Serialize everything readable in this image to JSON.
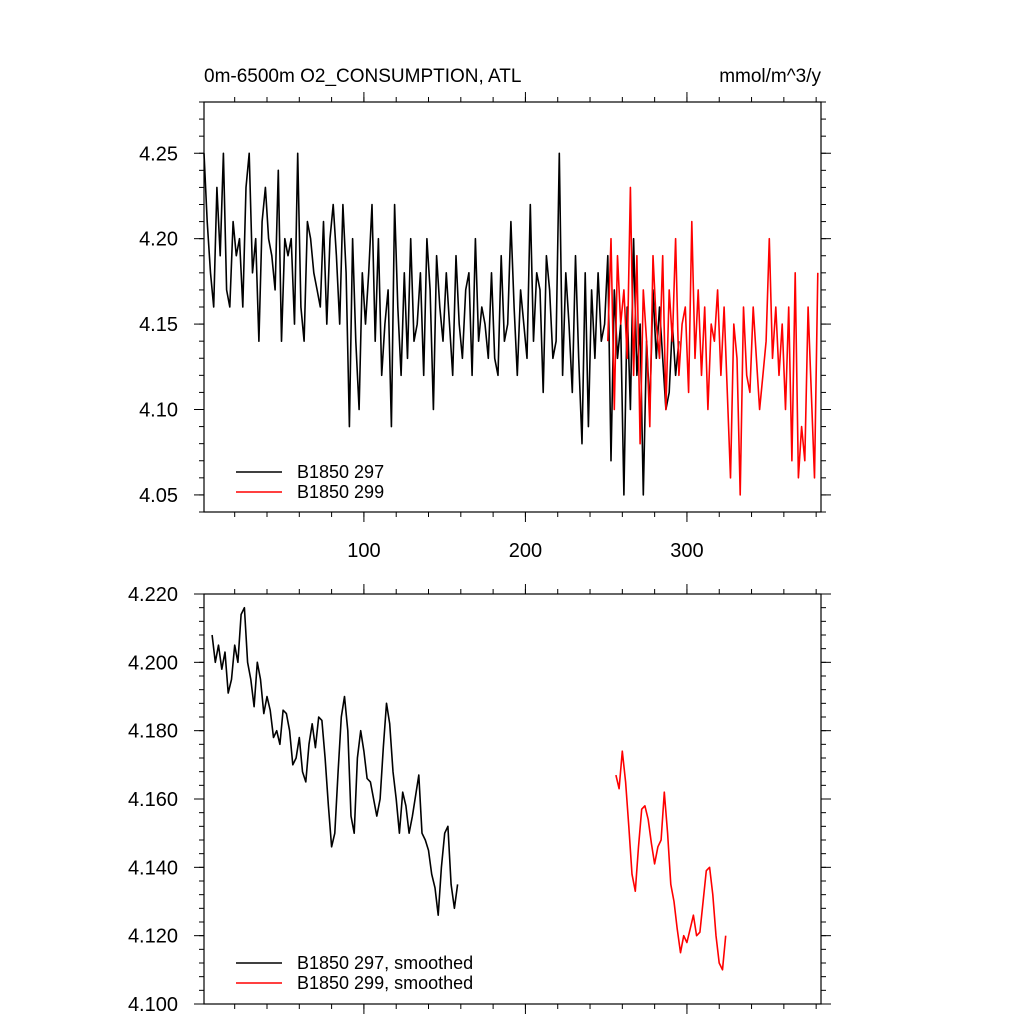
{
  "chart_data": [
    {
      "type": "line",
      "title": "0m-6500m O2_CONSUMPTION, ATL",
      "units": "mmol/m^3/y",
      "xlim": [
        1,
        383
      ],
      "ylim": [
        4.04,
        4.28
      ],
      "xticks": [
        100,
        200,
        300
      ],
      "xtick_labels": [
        "100",
        "200",
        "300"
      ],
      "yticks": [
        4.05,
        4.1,
        4.15,
        4.2,
        4.25
      ],
      "ytick_labels": [
        "4.05",
        "4.10",
        "4.15",
        "4.20",
        "4.25"
      ],
      "legend_position": "bottom-left",
      "series": [
        {
          "name": "B1850 297",
          "color": "#000000",
          "x_start": 1,
          "x_step": 2,
          "values": [
            4.25,
            4.21,
            4.18,
            4.16,
            4.23,
            4.19,
            4.25,
            4.17,
            4.16,
            4.21,
            4.19,
            4.2,
            4.16,
            4.23,
            4.25,
            4.18,
            4.2,
            4.14,
            4.21,
            4.23,
            4.2,
            4.19,
            4.17,
            4.24,
            4.14,
            4.2,
            4.19,
            4.2,
            4.15,
            4.25,
            4.16,
            4.14,
            4.21,
            4.2,
            4.18,
            4.17,
            4.16,
            4.21,
            4.15,
            4.2,
            4.22,
            4.19,
            4.15,
            4.22,
            4.18,
            4.09,
            4.2,
            4.14,
            4.1,
            4.18,
            4.15,
            4.18,
            4.22,
            4.14,
            4.2,
            4.12,
            4.15,
            4.17,
            4.09,
            4.22,
            4.16,
            4.12,
            4.18,
            4.13,
            4.2,
            4.14,
            4.15,
            4.18,
            4.12,
            4.2,
            4.17,
            4.1,
            4.19,
            4.16,
            4.14,
            4.18,
            4.15,
            4.12,
            4.19,
            4.15,
            4.13,
            4.17,
            4.18,
            4.12,
            4.2,
            4.14,
            4.16,
            4.15,
            4.13,
            4.18,
            4.13,
            4.12,
            4.19,
            4.14,
            4.15,
            4.21,
            4.16,
            4.12,
            4.17,
            4.15,
            4.13,
            4.22,
            4.14,
            4.18,
            4.17,
            4.11,
            4.19,
            4.17,
            4.13,
            4.14,
            4.25,
            4.12,
            4.18,
            4.15,
            4.11,
            4.19,
            4.13,
            4.08,
            4.18,
            4.09,
            4.17,
            4.13,
            4.18,
            4.14,
            4.15,
            4.19,
            4.07,
            4.17,
            4.13,
            4.15,
            4.05,
            4.16,
            4.1,
            4.2,
            4.12,
            4.15,
            4.05,
            4.14,
            4.1,
            4.17,
            4.13,
            4.16,
            4.13,
            4.1,
            4.11,
            4.15,
            4.12,
            4.14
          ]
        },
        {
          "name": "B1850 299",
          "color": "#ff0000",
          "x_start": 251,
          "x_step": 2,
          "values": [
            4.14,
            4.2,
            4.1,
            4.19,
            4.15,
            4.17,
            4.13,
            4.23,
            4.12,
            4.19,
            4.08,
            4.17,
            4.14,
            4.09,
            4.19,
            4.15,
            4.13,
            4.19,
            4.1,
            4.17,
            4.14,
            4.2,
            4.12,
            4.15,
            4.16,
            4.11,
            4.21,
            4.13,
            4.17,
            4.12,
            4.16,
            4.1,
            4.15,
            4.14,
            4.17,
            4.12,
            4.16,
            4.11,
            4.06,
            4.15,
            4.13,
            4.05,
            4.16,
            4.12,
            4.11,
            4.16,
            4.13,
            4.1,
            4.12,
            4.14,
            4.2,
            4.13,
            4.16,
            4.12,
            4.15,
            4.1,
            4.16,
            4.07,
            4.18,
            4.06,
            4.09,
            4.07,
            4.16,
            4.11,
            4.06,
            4.18
          ]
        }
      ]
    },
    {
      "type": "line",
      "xlim": [
        1,
        383
      ],
      "ylim": [
        4.1,
        4.22
      ],
      "xticks": [
        100,
        200,
        300
      ],
      "xtick_labels": [],
      "yticks": [
        4.1,
        4.12,
        4.14,
        4.16,
        4.18,
        4.2,
        4.22
      ],
      "ytick_labels": [
        "4.100",
        "4.120",
        "4.140",
        "4.160",
        "4.180",
        "4.200",
        "4.220"
      ],
      "legend_position": "bottom-left",
      "series": [
        {
          "name": "B1850 297, smoothed",
          "color": "#000000",
          "x_start": 6,
          "x_step": 2,
          "values": [
            4.208,
            4.2,
            4.205,
            4.198,
            4.203,
            4.191,
            4.195,
            4.205,
            4.2,
            4.214,
            4.216,
            4.2,
            4.195,
            4.187,
            4.2,
            4.195,
            4.185,
            4.19,
            4.186,
            4.178,
            4.18,
            4.176,
            4.186,
            4.185,
            4.18,
            4.17,
            4.172,
            4.178,
            4.168,
            4.165,
            4.176,
            4.182,
            4.175,
            4.184,
            4.183,
            4.172,
            4.158,
            4.146,
            4.15,
            4.168,
            4.184,
            4.19,
            4.18,
            4.155,
            4.15,
            4.172,
            4.18,
            4.174,
            4.166,
            4.165,
            4.16,
            4.155,
            4.16,
            4.175,
            4.188,
            4.182,
            4.168,
            4.16,
            4.15,
            4.162,
            4.158,
            4.15,
            4.155,
            4.161,
            4.167,
            4.15,
            4.148,
            4.145,
            4.138,
            4.134,
            4.126,
            4.14,
            4.15,
            4.152,
            4.135,
            4.128,
            4.135
          ]
        },
        {
          "name": "B1850 299, smoothed",
          "color": "#ff0000",
          "x_start": 256,
          "x_step": 2,
          "values": [
            4.167,
            4.163,
            4.174,
            4.165,
            4.152,
            4.138,
            4.133,
            4.146,
            4.157,
            4.158,
            4.154,
            4.147,
            4.141,
            4.146,
            4.148,
            4.162,
            4.15,
            4.135,
            4.13,
            4.122,
            4.115,
            4.12,
            4.118,
            4.122,
            4.126,
            4.12,
            4.121,
            4.13,
            4.139,
            4.14,
            4.132,
            4.12,
            4.112,
            4.11,
            4.12
          ]
        }
      ]
    }
  ]
}
